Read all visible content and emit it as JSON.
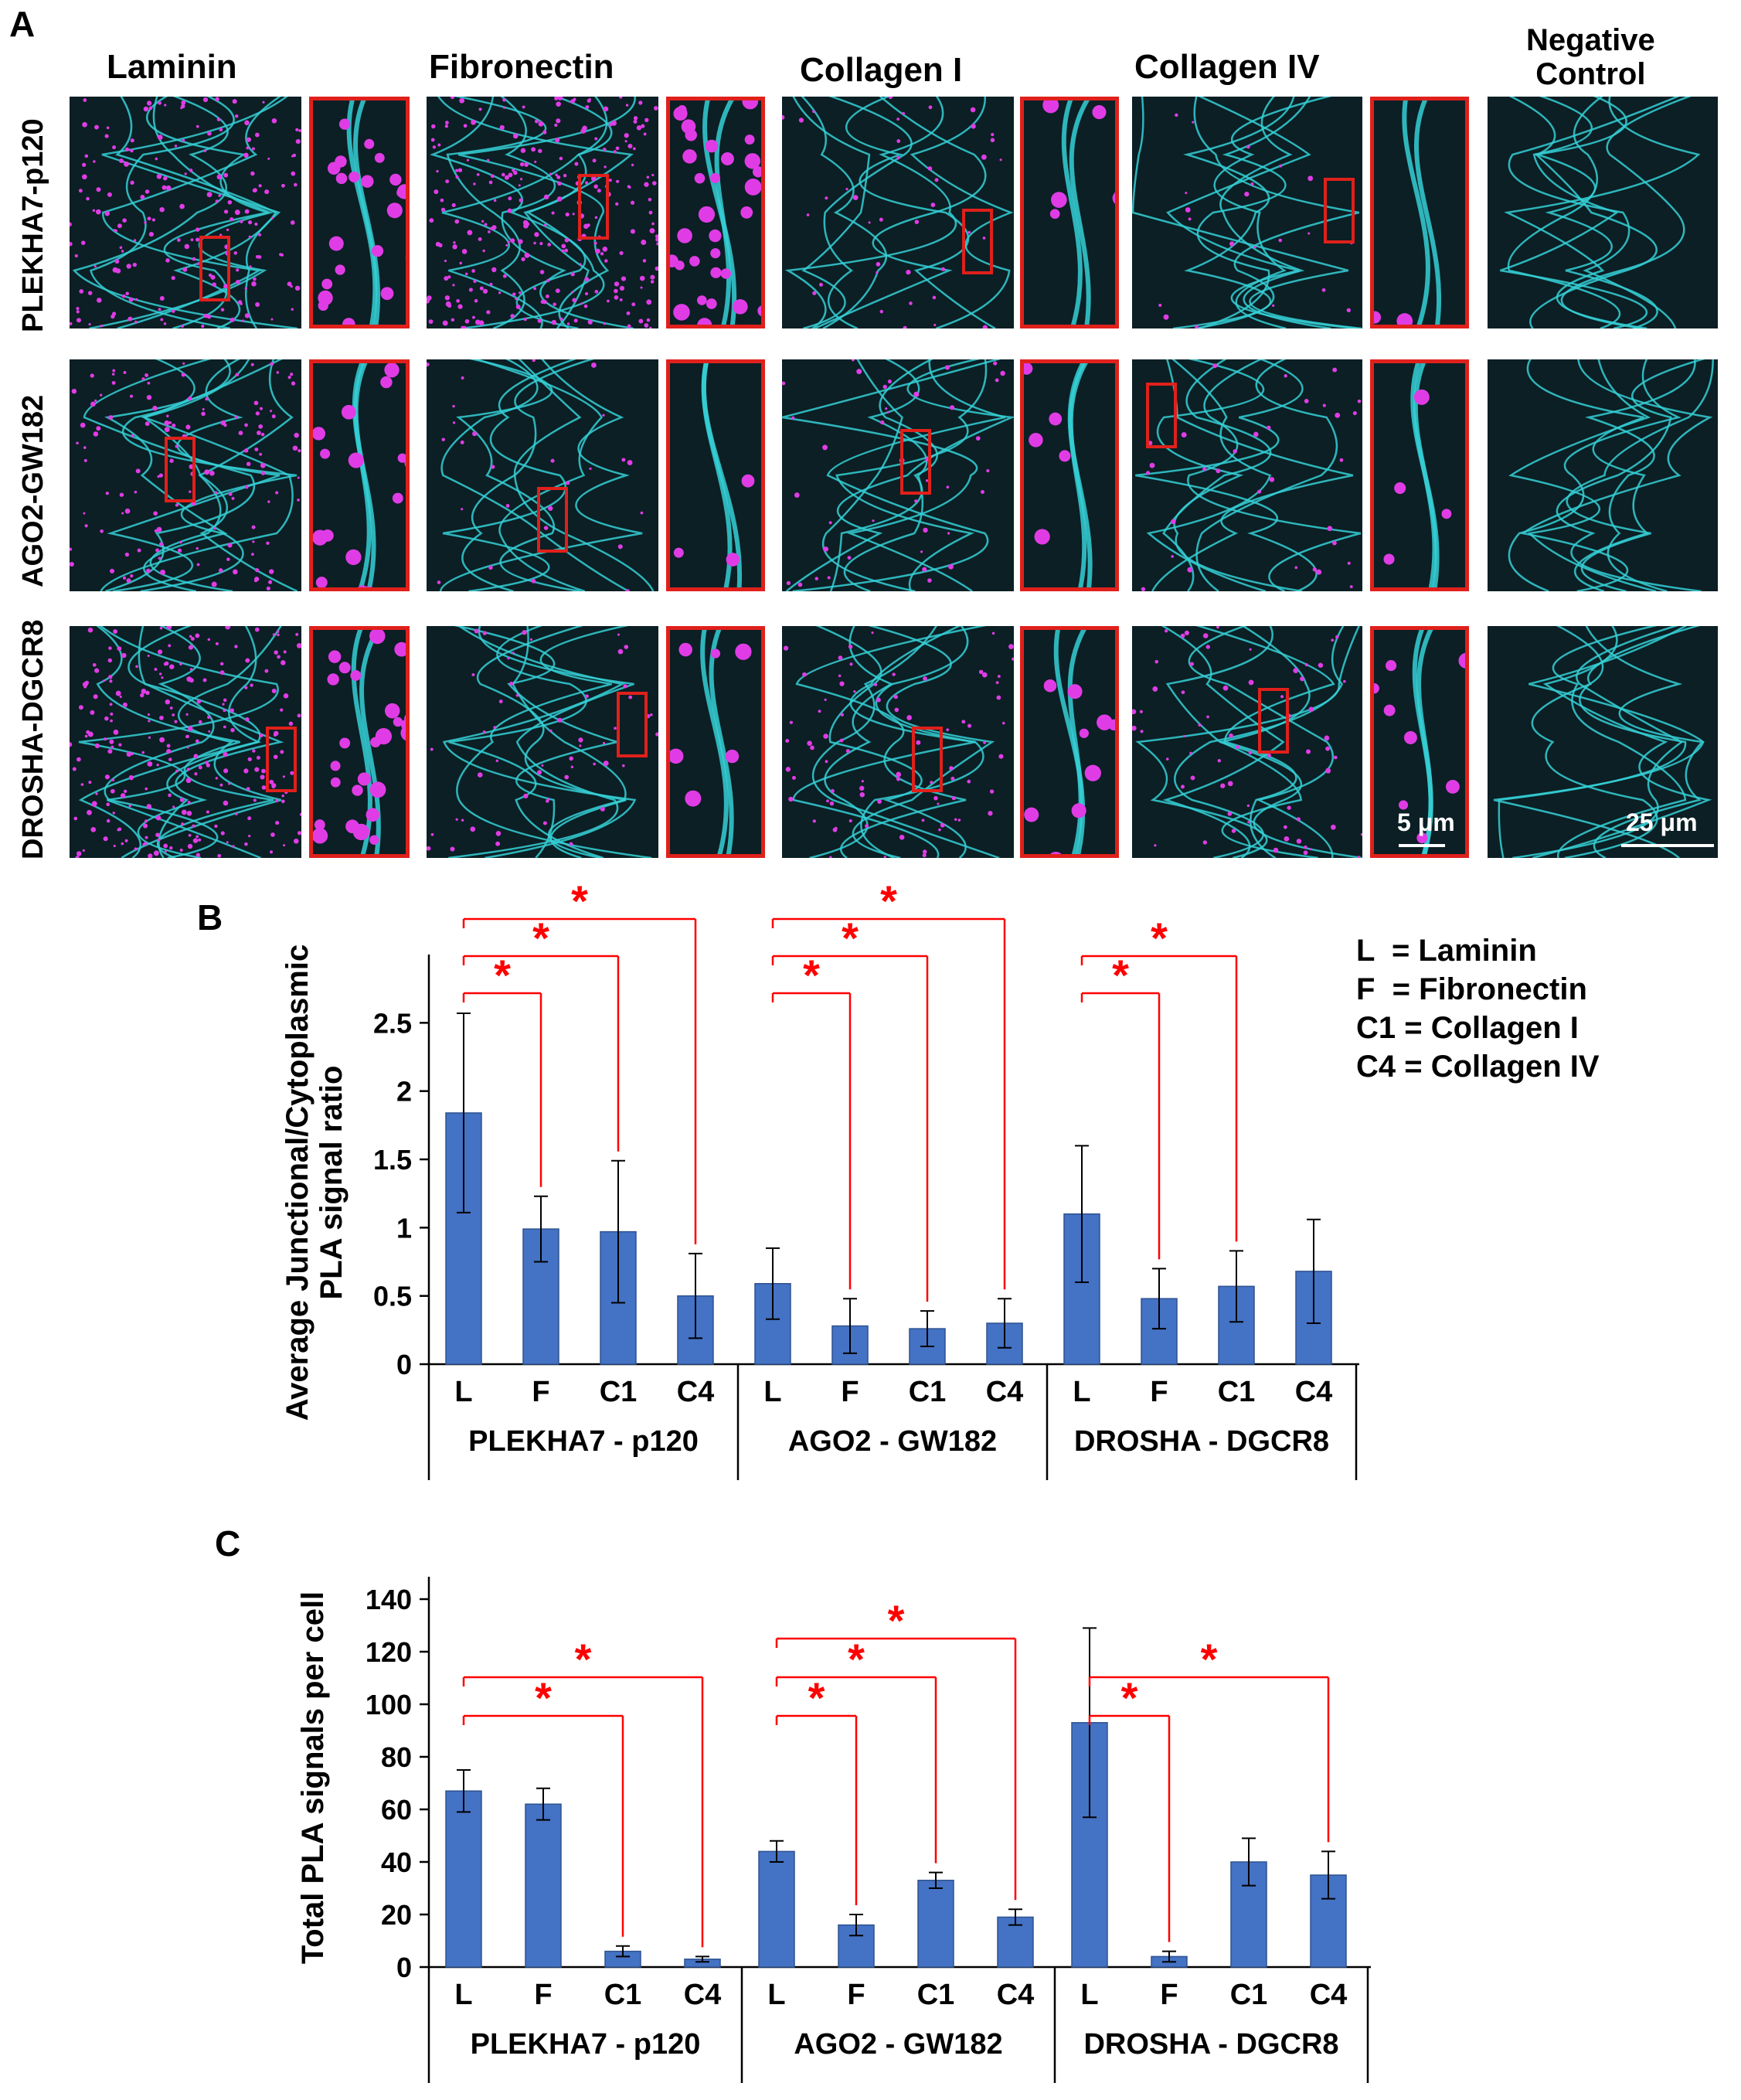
{
  "panel_labels": {
    "a": "A",
    "b": "B",
    "c": "C"
  },
  "micrograph": {
    "columns": [
      "Laminin",
      "Fibronectin",
      "Collagen I",
      "Collagen IV"
    ],
    "negative_control": [
      "Negative",
      "Control"
    ],
    "rows": [
      "PLEKHA7-p120",
      "AGO2-GW182",
      "DROSHA-DGCR8"
    ],
    "scale_small": "5 μm",
    "scale_large": "25 μm",
    "colors": {
      "background": "#0b1f24",
      "junction": "#35d0d6",
      "pla": "#e03ce6",
      "frame": "#e0201b"
    }
  },
  "legend": [
    "L  = Laminin",
    "F  = Fibronectin",
    "C1 = Collagen I",
    "C4 = Collagen IV"
  ],
  "chart_data": [
    {
      "type": "bar",
      "ylabel": [
        "Average Junctional/Cytoplasmic",
        "PLA signal ratio"
      ],
      "ylim": [
        0,
        3
      ],
      "yticks": [
        "0",
        "0.5",
        "1",
        "1.5",
        "2",
        "2.5"
      ],
      "ytick_values": [
        0,
        0.5,
        1,
        1.5,
        2,
        2.5
      ],
      "categories": [
        "L",
        "F",
        "C1",
        "C4"
      ],
      "groups": [
        "PLEKHA7 - p120",
        "AGO2 - GW182",
        "DROSHA - DGCR8"
      ],
      "values": [
        [
          1.84,
          0.99,
          0.97,
          0.5
        ],
        [
          0.59,
          0.28,
          0.26,
          0.3
        ],
        [
          1.1,
          0.48,
          0.57,
          0.68
        ]
      ],
      "errors": [
        [
          0.73,
          0.24,
          0.52,
          0.31
        ],
        [
          0.26,
          0.2,
          0.13,
          0.18
        ],
        [
          0.5,
          0.22,
          0.26,
          0.38
        ]
      ],
      "significance": [
        [
          [
            0,
            1
          ],
          [
            0,
            2
          ],
          [
            0,
            3
          ]
        ],
        [
          [
            0,
            1
          ],
          [
            0,
            2
          ],
          [
            0,
            3
          ]
        ],
        [
          [
            0,
            1
          ],
          [
            0,
            2
          ]
        ]
      ],
      "marker": "*",
      "bar_color": "#4472c4",
      "sig_color": "#ff0000"
    },
    {
      "type": "bar",
      "ylabel": [
        "Total PLA signals per cell"
      ],
      "ylim": [
        0,
        150
      ],
      "yticks": [
        "0",
        "20",
        "40",
        "60",
        "80",
        "100",
        "120",
        "140"
      ],
      "ytick_values": [
        0,
        20,
        40,
        60,
        80,
        100,
        120,
        140
      ],
      "categories": [
        "L",
        "F",
        "C1",
        "C4"
      ],
      "groups": [
        "PLEKHA7 - p120",
        "AGO2 - GW182",
        "DROSHA - DGCR8"
      ],
      "values": [
        [
          67,
          62,
          6,
          3
        ],
        [
          44,
          16,
          33,
          19
        ],
        [
          93,
          4,
          40,
          35
        ]
      ],
      "errors": [
        [
          8,
          6,
          2,
          1
        ],
        [
          4,
          4,
          3,
          3
        ],
        [
          36,
          2,
          9,
          9
        ]
      ],
      "significance": [
        [
          [
            0,
            2
          ],
          [
            0,
            3
          ]
        ],
        [
          [
            0,
            1
          ],
          [
            0,
            2
          ],
          [
            0,
            3
          ]
        ],
        [
          [
            0,
            1
          ],
          [
            0,
            3
          ]
        ]
      ],
      "marker": "*",
      "bar_color": "#4472c4",
      "sig_color": "#ff0000"
    }
  ]
}
